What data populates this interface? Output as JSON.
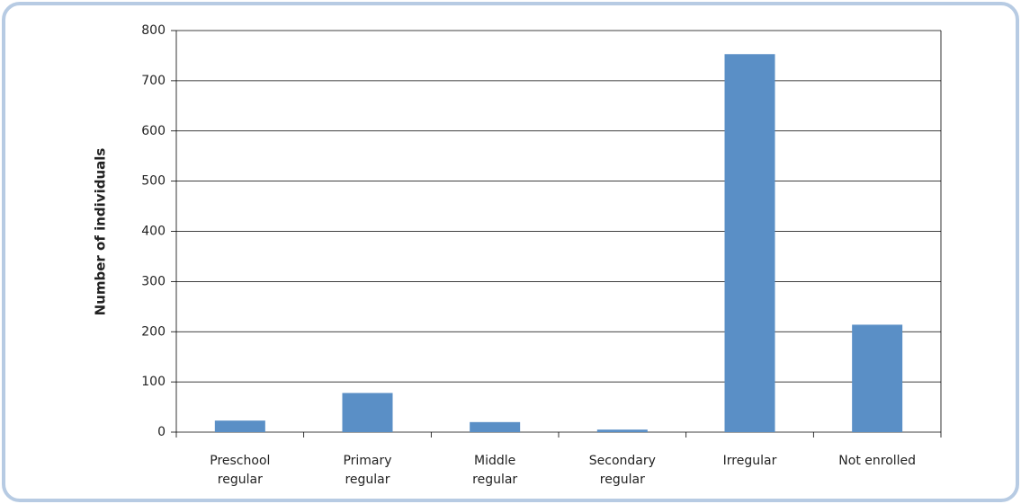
{
  "chart_data": {
    "type": "bar",
    "y_label": "Number of individuals",
    "categories": [
      "Preschool\nregular",
      "Primary\nregular",
      "Middle\nregular",
      "Secondary\nregular",
      "Irregular",
      "Not enrolled"
    ],
    "values": [
      23,
      78,
      20,
      5,
      753,
      214
    ],
    "color": "#5a8fc6",
    "ylim": [
      0,
      800
    ],
    "yticks": [
      0,
      100,
      200,
      300,
      400,
      500,
      600,
      700,
      800
    ],
    "grid": true
  }
}
